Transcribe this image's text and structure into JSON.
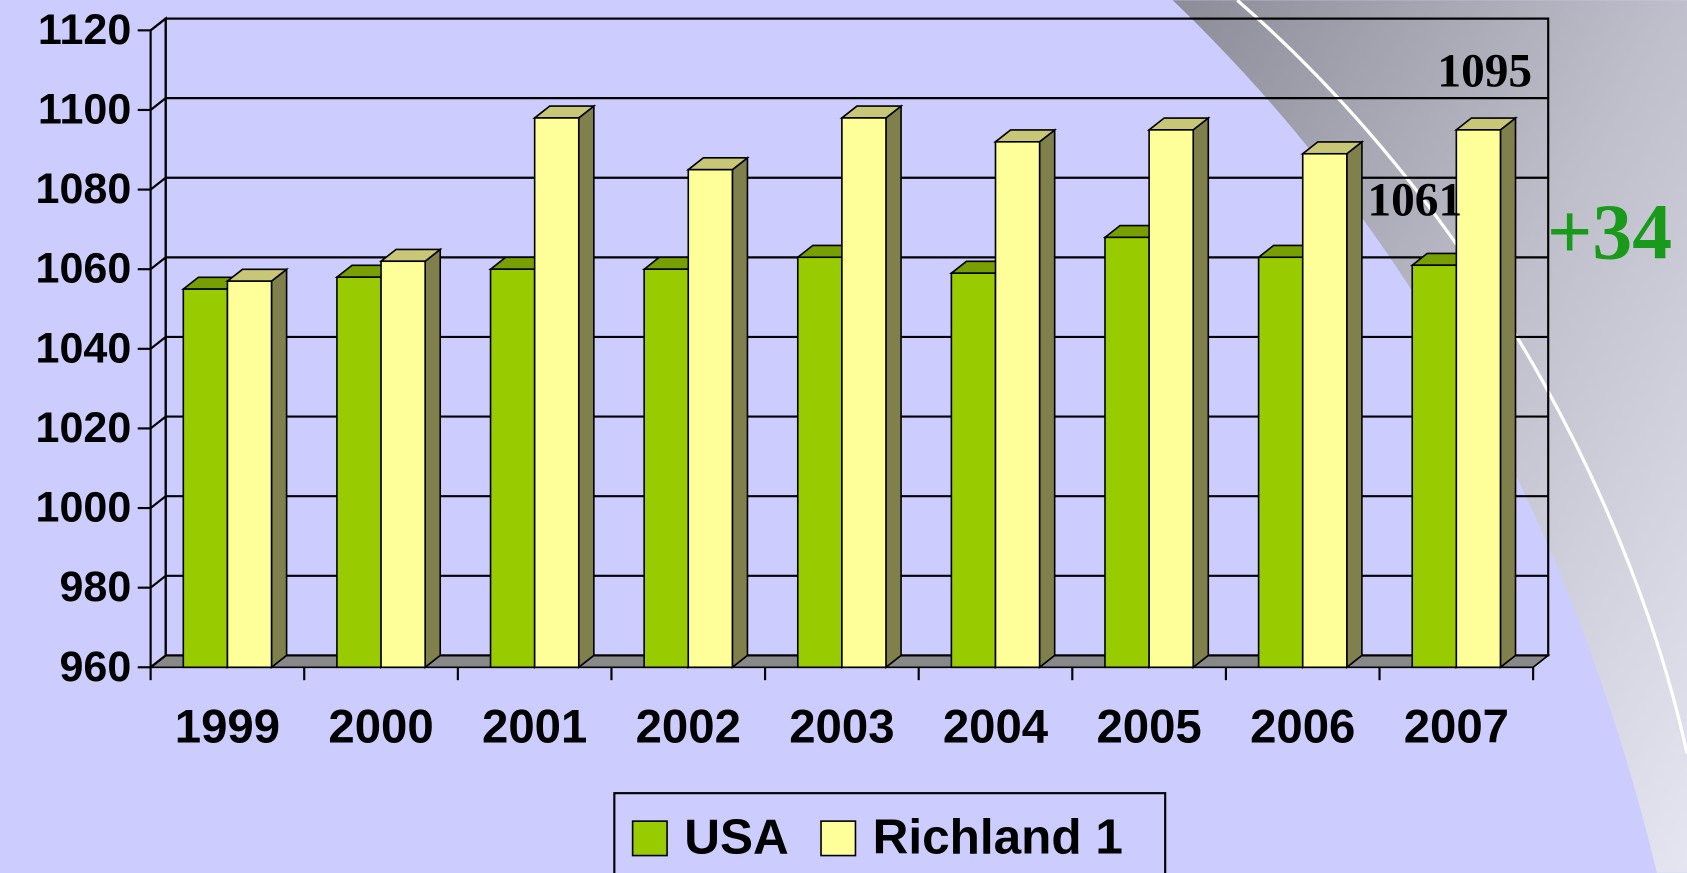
{
  "chart_data": {
    "type": "bar3d",
    "categories": [
      "1999",
      "2000",
      "2001",
      "2002",
      "2003",
      "2004",
      "2005",
      "2006",
      "2007"
    ],
    "series": [
      {
        "name": "USA",
        "color": "#99cc00",
        "values": [
          1055,
          1058,
          1060,
          1060,
          1063,
          1059,
          1068,
          1063,
          1061
        ]
      },
      {
        "name": "Richland 1",
        "color": "#ffff99",
        "values": [
          1057,
          1062,
          1098,
          1085,
          1098,
          1092,
          1095,
          1089,
          1095
        ]
      }
    ],
    "ylim": [
      960,
      1120
    ],
    "yticks": [
      960,
      980,
      1000,
      1020,
      1040,
      1060,
      1080,
      1100,
      1120
    ],
    "grid": true,
    "annotations": [
      "1095",
      "1061",
      "+34"
    ]
  }
}
